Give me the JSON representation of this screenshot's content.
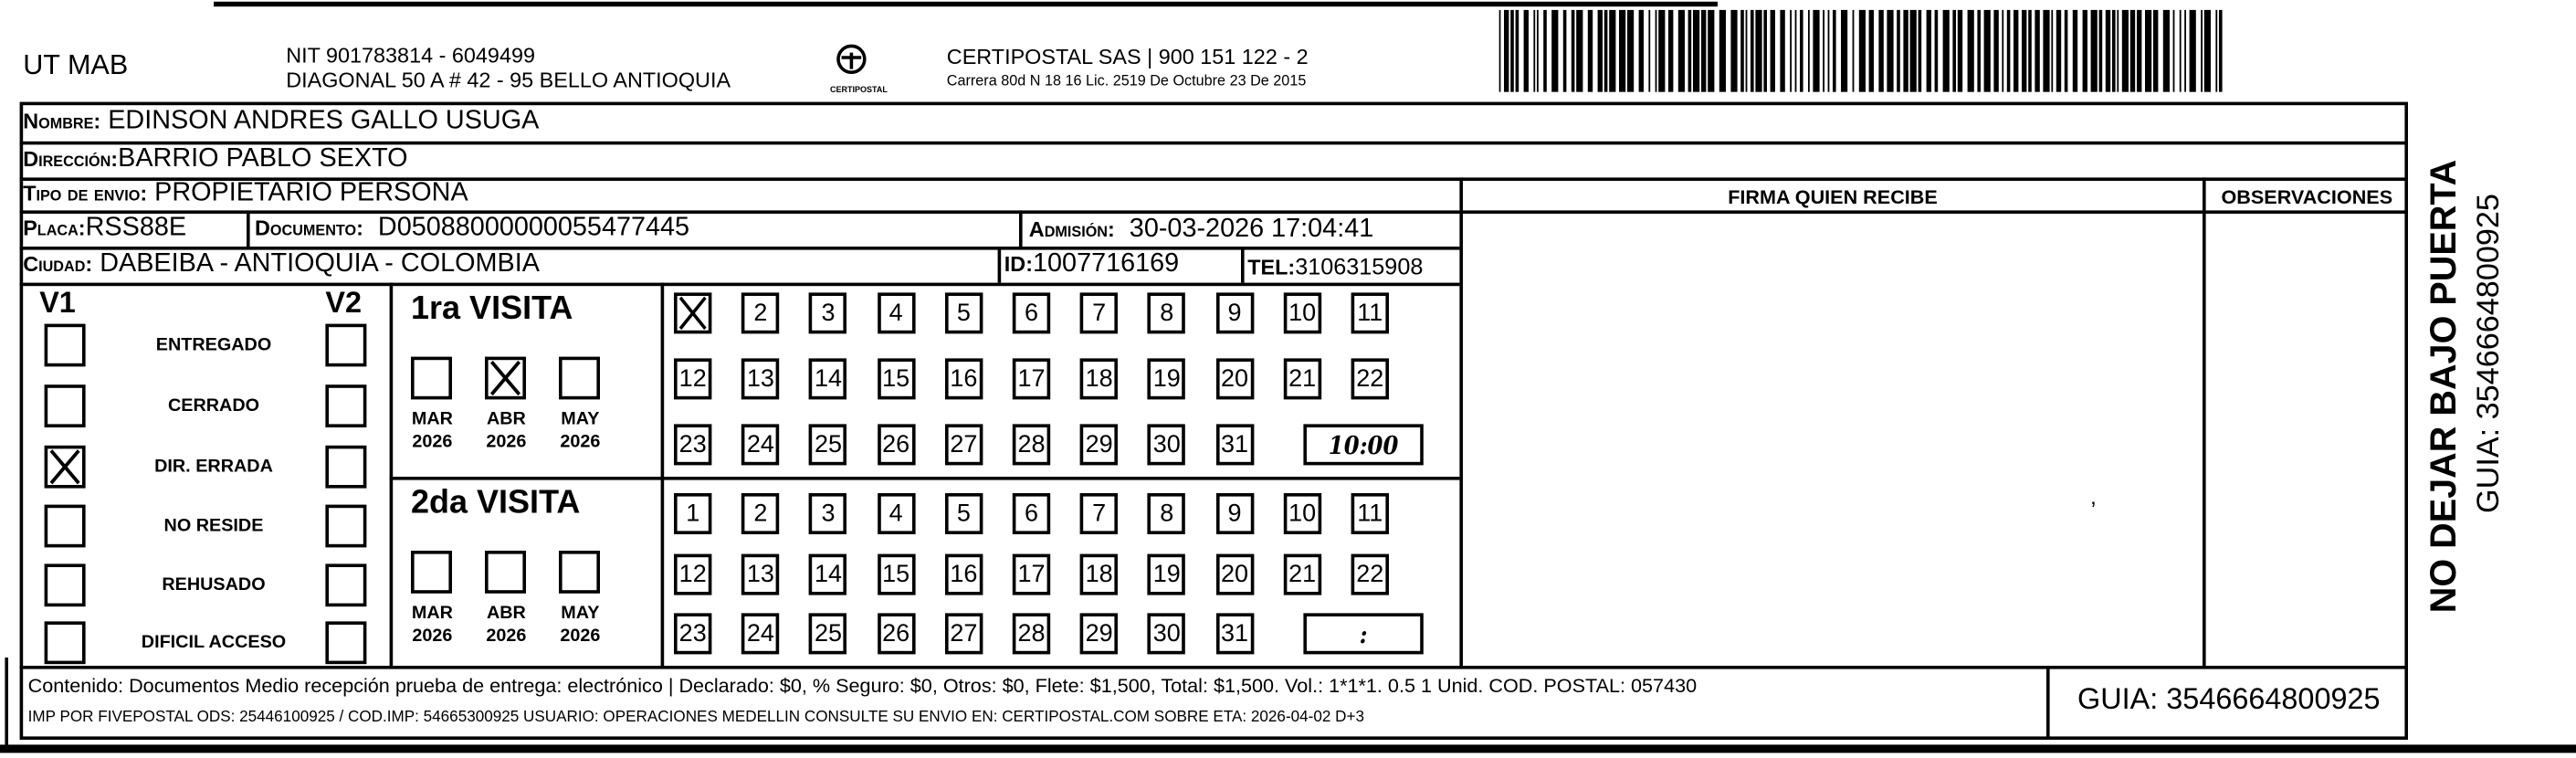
{
  "header": {
    "company": "UT MAB",
    "nit": "NIT 901783814 - 6049499",
    "address": "DIAGONAL 50 A # 42 - 95  BELLO  ANTIOQUIA",
    "logo_text": "CERTIPOSTAL",
    "carrier": "CERTIPOSTAL SAS | 900 151 122 - 2",
    "carrier_license": "Carrera 80d N 18 16  Lic. 2519 De Octubre 23 De 2015"
  },
  "recipient": {
    "name_label": "Nombre:",
    "name": "EDINSON ANDRES GALLO USUGA",
    "address_label": "Dirección:",
    "address": "BARRIO PABLO SEXTO",
    "type_label": "Tipo de envio:",
    "type": "PROPIETARIO PERSONA",
    "plate_label": "Placa:",
    "plate": "RSS88E",
    "document_label": "Documento:",
    "document": "D05088000000055477445",
    "admission_label": "Admisión:",
    "admission": "30-03-2026 17:04:41",
    "city_label": "Ciudad:",
    "city": "DABEIBA - ANTIOQUIA - COLOMBIA",
    "id_label": "ID:",
    "id": "1007716169",
    "tel_label": "TEL:",
    "tel": "3106315908"
  },
  "columns": {
    "signature": "FIRMA QUIEN RECIBE",
    "observations": "OBSERVACIONES"
  },
  "status": {
    "v1_label": "V1",
    "v2_label": "V2",
    "items": [
      {
        "label": "ENTREGADO",
        "v1": false,
        "v2": false
      },
      {
        "label": "CERRADO",
        "v1": false,
        "v2": false
      },
      {
        "label": "DIR. ERRADA",
        "v1": true,
        "v2": false
      },
      {
        "label": "NO RESIDE",
        "v1": false,
        "v2": false
      },
      {
        "label": "REHUSADO",
        "v1": false,
        "v2": false
      },
      {
        "label": "DIFICIL ACCESO",
        "v1": false,
        "v2": false
      }
    ]
  },
  "visits": [
    {
      "title": "1ra VISITA",
      "months": [
        {
          "m": "MAR",
          "y": "2026",
          "checked": false
        },
        {
          "m": "ABR",
          "y": "2026",
          "checked": true
        },
        {
          "m": "MAY",
          "y": "2026",
          "checked": false
        }
      ],
      "marked_day": 1,
      "time": "10:00"
    },
    {
      "title": "2da VISITA",
      "months": [
        {
          "m": "MAR",
          "y": "2026",
          "checked": false
        },
        {
          "m": "ABR",
          "y": "2026",
          "checked": false
        },
        {
          "m": "MAY",
          "y": "2026",
          "checked": false
        }
      ],
      "marked_day": null,
      "time": ":"
    }
  ],
  "footer": {
    "line1": "Contenido: Documentos Medio recepción prueba de entrega: electrónico | Declarado: $0, % Seguro: $0, Otros: $0, Flete: $1,500, Total: $1,500. Vol.: 1*1*1. 0.5  1 Unid. COD. POSTAL: 057430",
    "line2": "IMP POR FIVEPOSTAL ODS: 25446100925 / COD.IMP: 54665300925 USUARIO: OPERACIONES MEDELLIN CONSULTE SU ENVIO EN: CERTIPOSTAL.COM SOBRE ETA: 2026-04-02 D+3",
    "guia": "GUIA: 3546664800925"
  },
  "side": {
    "warning": "NO DEJAR BAJO PUERTA",
    "guia": "GUIA: 3546664800925"
  }
}
